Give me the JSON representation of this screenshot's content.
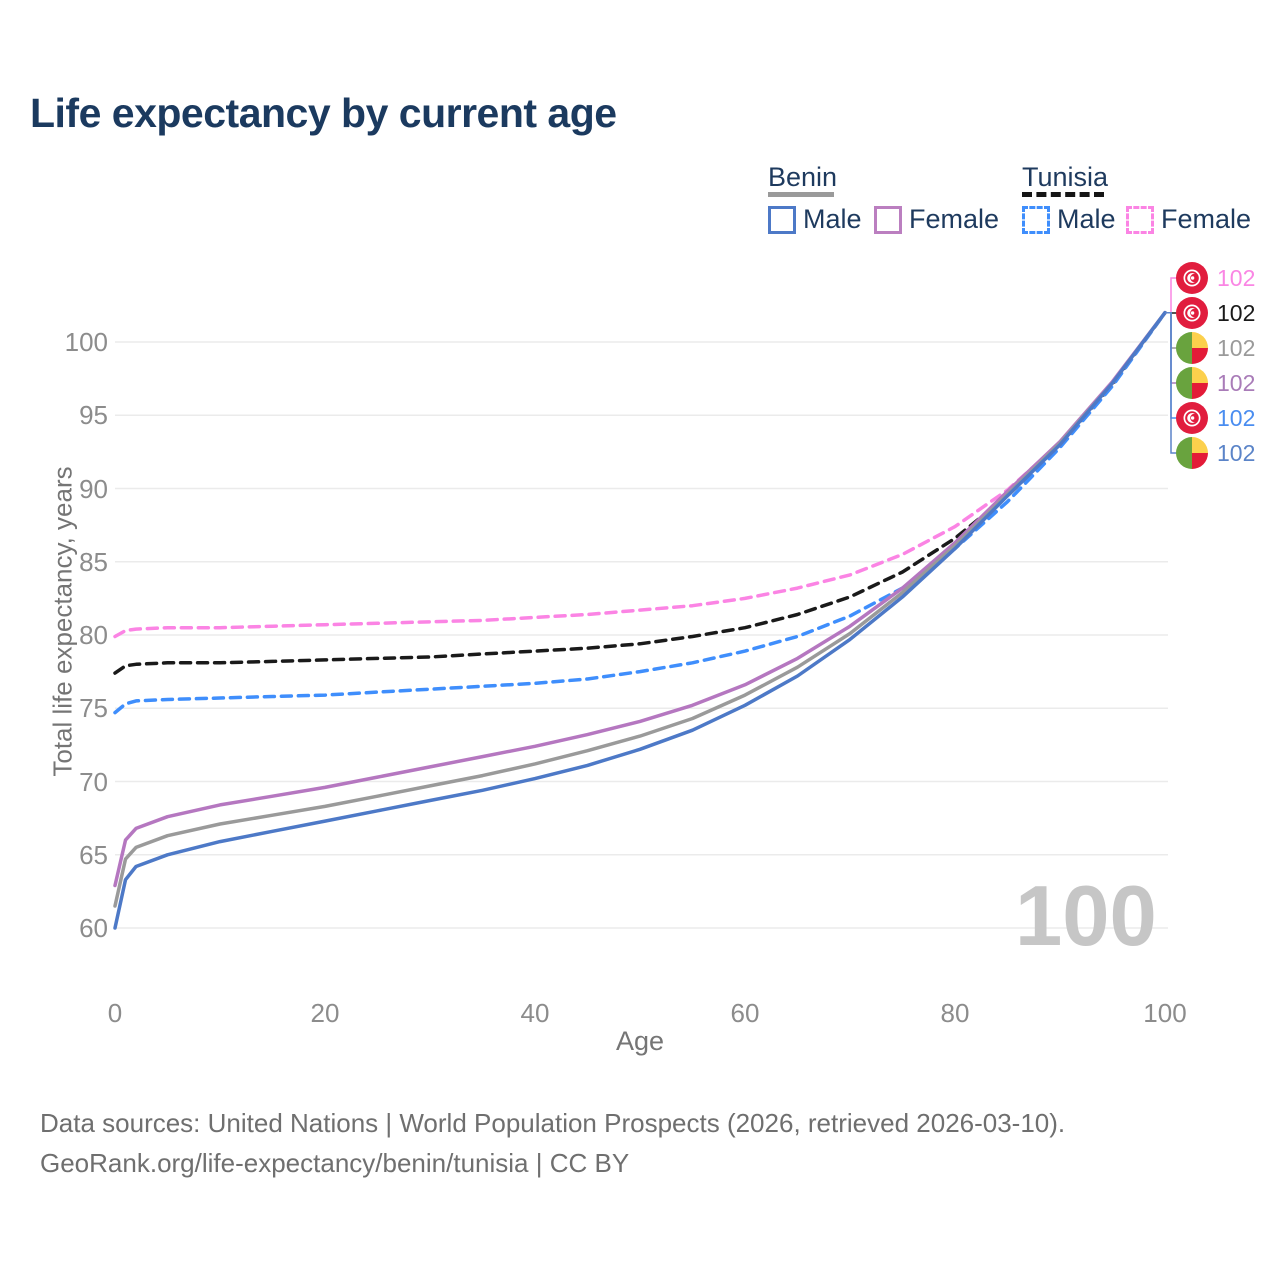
{
  "title": "Life expectancy by current age",
  "legend": {
    "benin": {
      "label": "Benin",
      "male": "Male",
      "female": "Female"
    },
    "tunisia": {
      "label": "Tunisia",
      "male": "Male",
      "female": "Female"
    }
  },
  "watermark": "100",
  "footer": {
    "line1": "Data sources: United Nations | World Population Prospects (2026, retrieved 2026-03-10).",
    "line2": "GeoRank.org/life-expectancy/benin/tunisia | CC BY"
  },
  "chart_data": {
    "type": "line",
    "title": "Life expectancy by current age",
    "xlabel": "Age",
    "ylabel": "Total life expectancy, years",
    "xticks": [
      0,
      20,
      40,
      60,
      80,
      100
    ],
    "yticks": [
      60,
      65,
      70,
      75,
      80,
      85,
      90,
      95,
      100
    ],
    "xlim": [
      0,
      100
    ],
    "ylim": [
      58.5,
      103
    ],
    "grid": "horizontal",
    "legend_position": "top-right",
    "ages": [
      0,
      1,
      2,
      5,
      10,
      15,
      20,
      25,
      30,
      35,
      40,
      45,
      50,
      55,
      60,
      65,
      70,
      75,
      80,
      85,
      90,
      95,
      100
    ],
    "series": [
      {
        "id": "tunisia_female",
        "name": "Tunisia Female",
        "country": "Tunisia",
        "sex": "Female",
        "color": "#fb84e4",
        "dashed": true,
        "values": [
          79.9,
          80.3,
          80.4,
          80.5,
          80.5,
          80.6,
          80.7,
          80.8,
          80.9,
          81.0,
          81.2,
          81.4,
          81.7,
          82.0,
          82.5,
          83.2,
          84.1,
          85.5,
          87.4,
          89.9,
          93.1,
          97.2,
          102
        ]
      },
      {
        "id": "tunisia_total",
        "name": "Tunisia",
        "country": "Tunisia",
        "sex": "Both",
        "color": "#1a1a1a",
        "dashed": true,
        "values": [
          77.4,
          77.9,
          78.0,
          78.1,
          78.1,
          78.2,
          78.3,
          78.4,
          78.5,
          78.7,
          78.9,
          79.1,
          79.4,
          79.9,
          80.5,
          81.4,
          82.6,
          84.3,
          86.6,
          89.5,
          93.0,
          97.1,
          102
        ]
      },
      {
        "id": "tunisia_male",
        "name": "Tunisia Male",
        "country": "Tunisia",
        "sex": "Male",
        "color": "#3f8efc",
        "dashed": true,
        "values": [
          74.7,
          75.3,
          75.5,
          75.6,
          75.7,
          75.8,
          75.9,
          76.1,
          76.3,
          76.5,
          76.7,
          77.0,
          77.5,
          78.1,
          78.9,
          79.9,
          81.3,
          83.2,
          85.9,
          89.1,
          92.8,
          97.0,
          102
        ]
      },
      {
        "id": "benin_female",
        "name": "Benin Female",
        "country": "Benin",
        "sex": "Female",
        "color": "#b577c0",
        "dashed": false,
        "values": [
          62.9,
          66.0,
          66.8,
          67.6,
          68.4,
          69.0,
          69.6,
          70.3,
          71.0,
          71.7,
          72.4,
          73.2,
          74.1,
          75.2,
          76.6,
          78.4,
          80.6,
          83.2,
          86.3,
          89.8,
          93.2,
          97.3,
          102
        ]
      },
      {
        "id": "benin_total",
        "name": "Benin",
        "country": "Benin",
        "sex": "Both",
        "color": "#9a9a9a",
        "dashed": false,
        "values": [
          61.5,
          64.7,
          65.5,
          66.3,
          67.1,
          67.7,
          68.3,
          69.0,
          69.7,
          70.4,
          71.2,
          72.1,
          73.1,
          74.3,
          75.9,
          77.8,
          80.1,
          82.9,
          86.1,
          89.6,
          93.1,
          97.2,
          102
        ]
      },
      {
        "id": "benin_male",
        "name": "Benin Male",
        "country": "Benin",
        "sex": "Male",
        "color": "#4d79c7",
        "dashed": false,
        "values": [
          60.0,
          63.3,
          64.2,
          65.0,
          65.9,
          66.6,
          67.3,
          68.0,
          68.7,
          69.4,
          70.2,
          71.1,
          72.2,
          73.5,
          75.2,
          77.2,
          79.7,
          82.6,
          85.9,
          89.5,
          93.0,
          97.2,
          102
        ]
      }
    ],
    "end_labels": [
      {
        "series": "tunisia_female",
        "flag": "tunisia",
        "value": "102",
        "color": "#fa86e4"
      },
      {
        "series": "tunisia_total",
        "flag": "tunisia",
        "value": "102",
        "color": "#1a1a1a"
      },
      {
        "series": "benin_total",
        "flag": "benin",
        "value": "102",
        "color": "#9a9a9a"
      },
      {
        "series": "benin_female",
        "flag": "benin",
        "value": "102",
        "color": "#a97cb8"
      },
      {
        "series": "tunisia_male",
        "flag": "tunisia",
        "value": "102",
        "color": "#4a8df0"
      },
      {
        "series": "benin_male",
        "flag": "benin",
        "value": "102",
        "color": "#5b84c8"
      }
    ]
  }
}
